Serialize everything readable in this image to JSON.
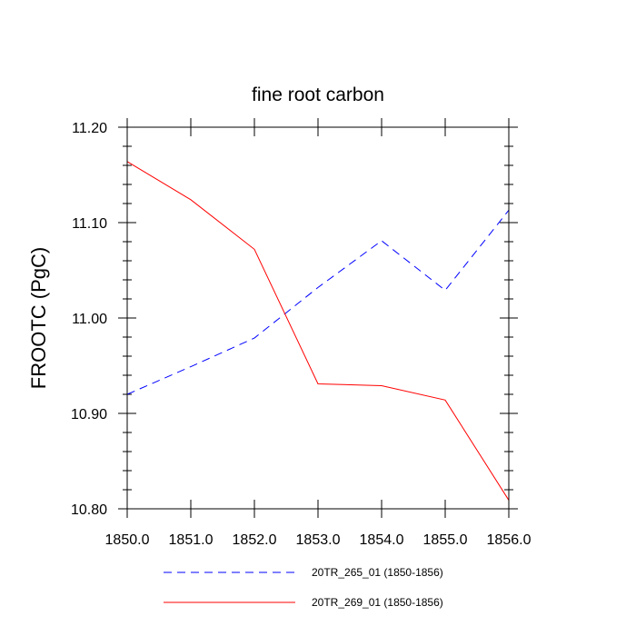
{
  "chart_data": {
    "type": "line",
    "title": "fine root carbon",
    "xlabel": "",
    "ylabel": "FROOTC  (PgC)",
    "xlim": [
      1850,
      1856
    ],
    "ylim": [
      10.8,
      11.2
    ],
    "xticks": [
      1850,
      1851,
      1852,
      1853,
      1854,
      1855,
      1856
    ],
    "xtick_labels": [
      "1850.0",
      "1851.0",
      "1852.0",
      "1853.0",
      "1854.0",
      "1855.0",
      "1856.0"
    ],
    "yticks": [
      10.8,
      10.9,
      11.0,
      11.1,
      11.2
    ],
    "ytick_labels": [
      "10.80",
      "10.90",
      "11.00",
      "11.10",
      "11.20"
    ],
    "grid": false,
    "legend_position": "bottom",
    "x": [
      1850,
      1851,
      1852,
      1853,
      1854,
      1855,
      1856
    ],
    "series": [
      {
        "name": "20TR_265_01 (1850-1856)",
        "color": "#0000ff",
        "style": "dashed",
        "values": [
          10.92,
          10.949,
          10.979,
          11.032,
          11.081,
          11.029,
          11.113
        ]
      },
      {
        "name": "20TR_269_01 (1850-1856)",
        "color": "#ff0000",
        "style": "solid",
        "values": [
          11.164,
          11.124,
          11.072,
          10.931,
          10.929,
          10.914,
          10.809
        ]
      }
    ]
  }
}
